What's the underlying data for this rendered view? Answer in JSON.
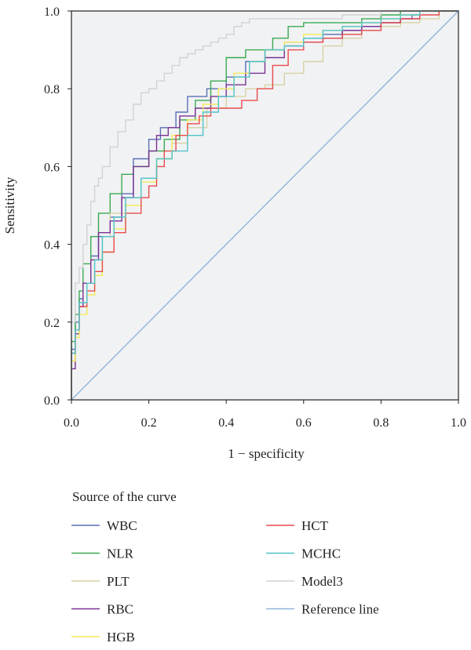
{
  "chart_data": {
    "type": "line",
    "title": "",
    "xlabel": "1 − specificity",
    "ylabel": "Sensitivity",
    "xlim": [
      0,
      1
    ],
    "ylim": [
      0,
      1
    ],
    "x_ticks": [
      "0.0",
      "0.2",
      "0.4",
      "0.6",
      "0.8",
      "1.0"
    ],
    "y_ticks": [
      "0.0",
      "0.2",
      "0.4",
      "0.6",
      "0.8",
      "1.0"
    ],
    "grid": false,
    "plot_background": "#f1f2f4",
    "legend": {
      "title": "Source of the curve",
      "placement": "bottom",
      "columns": 2
    },
    "series": [
      {
        "name": "WBC",
        "color": "#5b6fb5",
        "x": [
          0,
          0.01,
          0.02,
          0.03,
          0.05,
          0.07,
          0.1,
          0.13,
          0.16,
          0.2,
          0.23,
          0.27,
          0.3,
          0.35,
          0.4,
          0.45,
          0.5,
          0.55,
          0.6,
          0.65,
          0.7,
          0.75,
          0.8,
          0.85,
          0.88,
          0.9,
          0.94,
          1
        ],
        "y": [
          0,
          0.13,
          0.2,
          0.26,
          0.3,
          0.37,
          0.42,
          0.47,
          0.53,
          0.62,
          0.67,
          0.7,
          0.74,
          0.78,
          0.8,
          0.83,
          0.87,
          0.9,
          0.92,
          0.93,
          0.94,
          0.95,
          0.96,
          0.97,
          0.98,
          0.99,
          1,
          1
        ]
      },
      {
        "name": "NLR",
        "color": "#3aab4f",
        "x": [
          0,
          0.01,
          0.02,
          0.03,
          0.05,
          0.07,
          0.1,
          0.13,
          0.16,
          0.2,
          0.24,
          0.28,
          0.32,
          0.36,
          0.4,
          0.45,
          0.48,
          0.52,
          0.56,
          0.6,
          0.65,
          0.7,
          0.75,
          0.8,
          0.85,
          0.9,
          0.95,
          1
        ],
        "y": [
          0,
          0.15,
          0.22,
          0.28,
          0.35,
          0.42,
          0.48,
          0.53,
          0.58,
          0.6,
          0.64,
          0.67,
          0.72,
          0.77,
          0.82,
          0.88,
          0.9,
          0.9,
          0.93,
          0.96,
          0.97,
          0.97,
          0.97,
          0.98,
          0.99,
          1,
          1,
          1
        ]
      },
      {
        "name": "PLT",
        "color": "#d8d1a4",
        "x": [
          0,
          0.01,
          0.02,
          0.03,
          0.05,
          0.08,
          0.1,
          0.14,
          0.18,
          0.22,
          0.26,
          0.3,
          0.35,
          0.4,
          0.45,
          0.5,
          0.55,
          0.6,
          0.65,
          0.7,
          0.75,
          0.8,
          0.85,
          0.9,
          0.95,
          1
        ],
        "y": [
          0,
          0.1,
          0.18,
          0.24,
          0.3,
          0.36,
          0.42,
          0.48,
          0.52,
          0.57,
          0.62,
          0.66,
          0.7,
          0.75,
          0.78,
          0.8,
          0.81,
          0.84,
          0.87,
          0.91,
          0.93,
          0.95,
          0.96,
          0.97,
          0.98,
          1
        ]
      },
      {
        "name": "RBC",
        "color": "#7b3294",
        "x": [
          0,
          0.01,
          0.02,
          0.03,
          0.05,
          0.07,
          0.1,
          0.13,
          0.16,
          0.2,
          0.22,
          0.25,
          0.28,
          0.32,
          0.36,
          0.4,
          0.45,
          0.5,
          0.55,
          0.6,
          0.65,
          0.7,
          0.75,
          0.8,
          0.85,
          0.9,
          0.94,
          1
        ],
        "y": [
          0,
          0.08,
          0.17,
          0.24,
          0.3,
          0.36,
          0.43,
          0.46,
          0.52,
          0.6,
          0.64,
          0.68,
          0.7,
          0.73,
          0.75,
          0.78,
          0.81,
          0.84,
          0.88,
          0.91,
          0.92,
          0.93,
          0.95,
          0.96,
          0.97,
          0.98,
          1,
          1
        ]
      },
      {
        "name": "HGB",
        "color": "#f3ea59",
        "x": [
          0,
          0.01,
          0.02,
          0.04,
          0.06,
          0.08,
          0.11,
          0.14,
          0.18,
          0.22,
          0.26,
          0.3,
          0.34,
          0.38,
          0.42,
          0.46,
          0.5,
          0.55,
          0.6,
          0.65,
          0.7,
          0.75,
          0.8,
          0.85,
          0.9,
          0.95,
          1
        ],
        "y": [
          0,
          0.1,
          0.16,
          0.22,
          0.27,
          0.32,
          0.38,
          0.44,
          0.5,
          0.56,
          0.62,
          0.68,
          0.72,
          0.76,
          0.8,
          0.84,
          0.87,
          0.9,
          0.92,
          0.94,
          0.95,
          0.96,
          0.97,
          0.98,
          0.99,
          1,
          1
        ]
      },
      {
        "name": "HCT",
        "color": "#e84c4c",
        "x": [
          0,
          0.01,
          0.02,
          0.04,
          0.06,
          0.08,
          0.11,
          0.14,
          0.18,
          0.2,
          0.22,
          0.24,
          0.27,
          0.3,
          0.33,
          0.36,
          0.4,
          0.44,
          0.48,
          0.52,
          0.56,
          0.6,
          0.65,
          0.7,
          0.75,
          0.8,
          0.85,
          0.9,
          0.95,
          1
        ],
        "y": [
          0,
          0.12,
          0.18,
          0.24,
          0.28,
          0.33,
          0.38,
          0.43,
          0.48,
          0.52,
          0.55,
          0.6,
          0.64,
          0.68,
          0.71,
          0.73,
          0.75,
          0.75,
          0.77,
          0.8,
          0.86,
          0.9,
          0.92,
          0.93,
          0.94,
          0.95,
          0.97,
          0.98,
          0.99,
          1
        ]
      },
      {
        "name": "MCHC",
        "color": "#4fc3c8",
        "x": [
          0,
          0.01,
          0.02,
          0.04,
          0.06,
          0.08,
          0.11,
          0.14,
          0.18,
          0.22,
          0.26,
          0.3,
          0.34,
          0.38,
          0.42,
          0.46,
          0.5,
          0.55,
          0.6,
          0.65,
          0.7,
          0.75,
          0.8,
          0.85,
          0.9,
          0.94,
          1
        ],
        "y": [
          0,
          0.12,
          0.18,
          0.25,
          0.3,
          0.36,
          0.42,
          0.47,
          0.52,
          0.57,
          0.62,
          0.64,
          0.68,
          0.74,
          0.78,
          0.83,
          0.87,
          0.9,
          0.91,
          0.93,
          0.95,
          0.96,
          0.97,
          0.98,
          0.99,
          1,
          1
        ]
      },
      {
        "name": "Model3",
        "color": "#d2d2d2",
        "x": [
          0,
          0.01,
          0.02,
          0.03,
          0.04,
          0.05,
          0.06,
          0.07,
          0.08,
          0.1,
          0.12,
          0.14,
          0.16,
          0.18,
          0.2,
          0.22,
          0.24,
          0.26,
          0.28,
          0.3,
          0.32,
          0.34,
          0.36,
          0.38,
          0.4,
          0.42,
          0.44,
          0.46,
          0.48,
          0.52,
          0.6,
          0.7,
          0.75,
          0.8,
          0.9,
          1
        ],
        "y": [
          0,
          0.2,
          0.3,
          0.34,
          0.4,
          0.45,
          0.51,
          0.55,
          0.57,
          0.6,
          0.65,
          0.69,
          0.72,
          0.76,
          0.79,
          0.8,
          0.82,
          0.84,
          0.86,
          0.88,
          0.89,
          0.9,
          0.91,
          0.92,
          0.93,
          0.94,
          0.96,
          0.97,
          0.98,
          0.98,
          0.98,
          0.98,
          0.99,
          0.99,
          1,
          1
        ]
      },
      {
        "name": "Reference line",
        "color": "#8fb4d9",
        "x": [
          0,
          1
        ],
        "y": [
          0,
          1
        ]
      }
    ]
  }
}
